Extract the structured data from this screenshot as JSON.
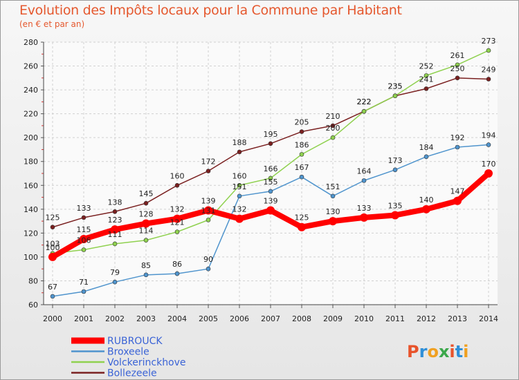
{
  "title": "Evolution des Impôts locaux pour la Commune par Habitant",
  "subtitle": "(en € et par an)",
  "brand": "Proxiti",
  "chart_data": {
    "type": "line",
    "title": "Evolution des Impôts locaux pour la Commune par Habitant",
    "subtitle": "(en € et par an)",
    "x": [
      "2000",
      "2001",
      "2002",
      "2003",
      "2004",
      "2005",
      "2006",
      "2007",
      "2008",
      "2009",
      "2010",
      "2011",
      "2012",
      "2013",
      "2014"
    ],
    "ylim": [
      60,
      280
    ],
    "yticks": [
      60,
      80,
      100,
      120,
      140,
      160,
      180,
      200,
      220,
      240,
      260,
      280
    ],
    "grid": true,
    "legend_position": "bottom-left",
    "series": [
      {
        "name": "RUBROUCK",
        "color": "#ff0000",
        "width": 8,
        "values": [
          100,
          115,
          123,
          128,
          132,
          139,
          132,
          139,
          125,
          130,
          133,
          135,
          140,
          147,
          170
        ]
      },
      {
        "name": "Broxeele",
        "color": "#4f94cd",
        "width": 1.5,
        "values": [
          67,
          71,
          79,
          85,
          86,
          90,
          151,
          155,
          167,
          151,
          164,
          173,
          184,
          192,
          194
        ]
      },
      {
        "name": "Volckerinckhove",
        "color": "#8fd14f",
        "width": 1.5,
        "values": [
          103,
          106,
          111,
          114,
          121,
          131,
          160,
          166,
          186,
          200,
          222,
          235,
          252,
          261,
          273
        ]
      },
      {
        "name": "Bollezeele",
        "color": "#7a2020",
        "width": 1.5,
        "values": [
          125,
          133,
          138,
          145,
          160,
          172,
          188,
          195,
          205,
          210,
          222,
          235,
          241,
          250,
          249
        ]
      }
    ]
  }
}
